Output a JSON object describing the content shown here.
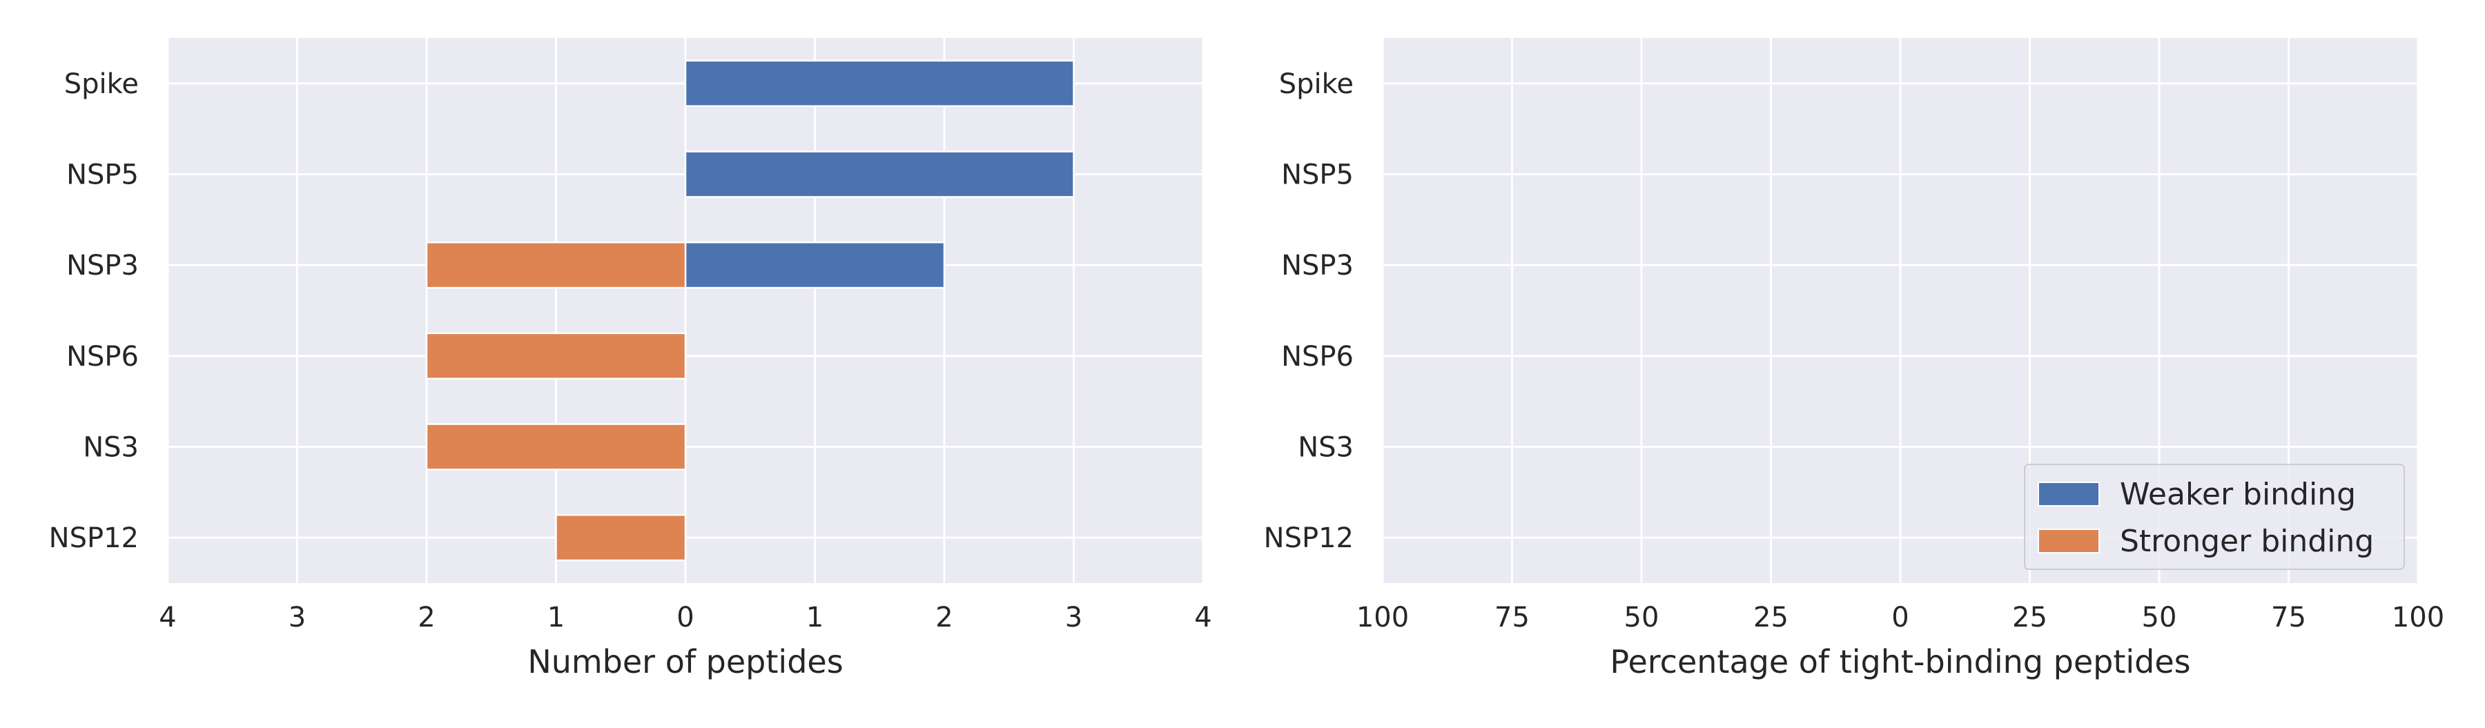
{
  "chart_data": [
    {
      "type": "bar",
      "orientation": "horizontal",
      "diverging": true,
      "categories": [
        "Spike",
        "NSP5",
        "NSP3",
        "NSP6",
        "NS3",
        "NSP12"
      ],
      "series": [
        {
          "name": "Weaker binding",
          "side": "right",
          "values": [
            3,
            3,
            2,
            0,
            0,
            0
          ]
        },
        {
          "name": "Stronger binding",
          "side": "left",
          "values": [
            0,
            0,
            2,
            2,
            2,
            1
          ]
        }
      ],
      "xlabel": "Number of peptides",
      "xlim": [
        -4,
        4
      ],
      "xticks": [
        -4,
        -3,
        -2,
        -1,
        0,
        1,
        2,
        3,
        4
      ],
      "xtick_labels": [
        "4",
        "3",
        "2",
        "1",
        "0",
        "1",
        "2",
        "3",
        "4"
      ],
      "grid": true,
      "legend": "none"
    },
    {
      "type": "bar",
      "orientation": "horizontal",
      "diverging": true,
      "categories": [
        "Spike",
        "NSP5",
        "NSP3",
        "NSP6",
        "NS3",
        "NSP12"
      ],
      "series": [
        {
          "name": "Weaker binding",
          "side": "right",
          "values": [
            0,
            0,
            0,
            0,
            0,
            0
          ]
        },
        {
          "name": "Stronger binding",
          "side": "left",
          "values": [
            0,
            0,
            0,
            0,
            0,
            0
          ]
        }
      ],
      "xlabel": "Percentage of tight-binding peptides",
      "xlim": [
        -100,
        100
      ],
      "xticks": [
        -100,
        -75,
        -50,
        -25,
        0,
        25,
        50,
        75,
        100
      ],
      "xtick_labels": [
        "100",
        "75",
        "50",
        "25",
        "0",
        "25",
        "50",
        "75",
        "100"
      ],
      "grid": true,
      "legend": "lower right"
    }
  ],
  "legend": {
    "items": [
      {
        "label": "Weaker binding",
        "color": "#4c72b0"
      },
      {
        "label": "Stronger binding",
        "color": "#dd8452"
      }
    ]
  },
  "colors": {
    "weaker": "#4c72b0",
    "stronger": "#dd8452",
    "axes_bg": "#eaeaf2",
    "grid": "#ffffff"
  }
}
